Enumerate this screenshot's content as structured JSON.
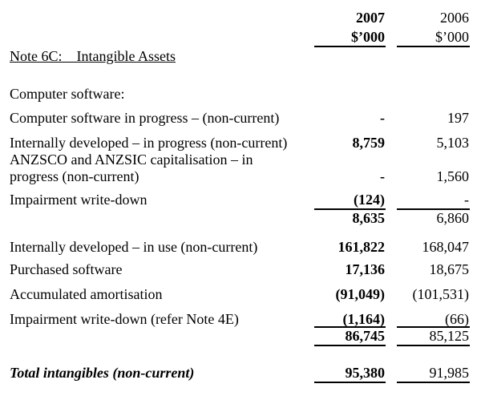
{
  "header": {
    "col_2007": "2007",
    "col_2006": "2006",
    "unit_2007": "$’000",
    "unit_2006": "$’000"
  },
  "note_title": "Note 6C:    Intangible Assets",
  "section_label": "Computer software:",
  "rows": [
    {
      "label": "Computer software in progress – (non-current)",
      "v2007": "-",
      "v2006": "197"
    },
    {
      "label": "Internally developed – in progress (non-current)",
      "v2007": "8,759",
      "v2006": "5,103"
    },
    {
      "label": "ANZSCO and ANZSIC capitalisation – in",
      "label2": "progress (non-current)",
      "v2007": "-",
      "v2006": "1,560"
    },
    {
      "label": "Impairment write-down",
      "v2007": "(124)",
      "v2006": "-"
    },
    {
      "label": "",
      "v2007": "8,635",
      "v2006": "6,860"
    },
    {
      "label": "Internally developed – in use (non-current)",
      "v2007": "161,822",
      "v2006": "168,047"
    },
    {
      "label": "Purchased software",
      "v2007": "17,136",
      "v2006": "18,675"
    },
    {
      "label": "Accumulated amortisation",
      "v2007": "(91,049)",
      "v2006": "(101,531)"
    },
    {
      "label": "Impairment write-down (refer Note 4E)",
      "v2007": "(1,164)",
      "v2006": "(66)"
    },
    {
      "label": "",
      "v2007": "86,745",
      "v2006": "85,125"
    }
  ],
  "total": {
    "label": "Total intangibles (non-current)",
    "v2007": "95,380",
    "v2006": "91,985"
  }
}
